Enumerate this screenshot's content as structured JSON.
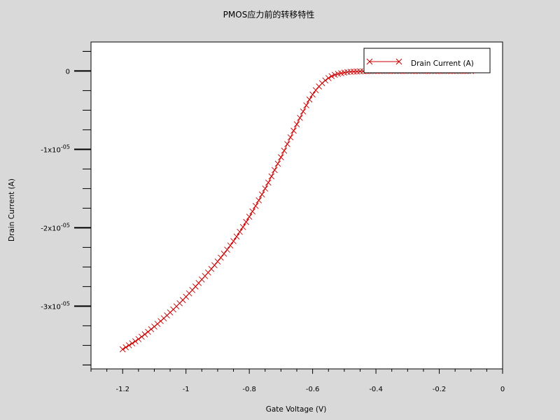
{
  "chart_data": {
    "type": "line",
    "title": "PMOS应力前的转移特性",
    "xlabel": "Gate Voltage (V)",
    "ylabel": "Drain Current (A)",
    "xlim": [
      -1.3,
      0.0
    ],
    "ylim": [
      -3.8e-05,
      3.7e-06
    ],
    "x_ticks": [
      -1.2,
      -1.0,
      -0.8,
      -0.6,
      -0.4,
      -0.2,
      0
    ],
    "x_tick_labels": [
      "-1.2",
      "-1",
      "-0.8",
      "-0.6",
      "-0.4",
      "-0.2",
      "0"
    ],
    "y_ticks": [
      0,
      -1e-05,
      -2e-05,
      -3e-05
    ],
    "y_tick_labels": [
      {
        "mantissa": "0",
        "exponent": ""
      },
      {
        "mantissa": "-1x10",
        "exponent": "-05"
      },
      {
        "mantissa": "-2x10",
        "exponent": "-05"
      },
      {
        "mantissa": "-3x10",
        "exponent": "-05"
      }
    ],
    "legend": {
      "position": "top-right"
    },
    "series": [
      {
        "name": "Drain Current (A)",
        "color": "#cc0000",
        "marker": "x",
        "x": [
          -1.2,
          -1.15,
          -1.1,
          -1.05,
          -1.0,
          -0.95,
          -0.9,
          -0.85,
          -0.8,
          -0.75,
          -0.7,
          -0.65,
          -0.6,
          -0.55,
          -0.5,
          -0.45,
          -0.4
        ],
        "y": [
          -3.55e-05,
          -3.42e-05,
          -3.26e-05,
          -3.08e-05,
          -2.88e-05,
          -2.66e-05,
          -2.43e-05,
          -2.17e-05,
          -1.86e-05,
          -1.5e-05,
          -1.1e-05,
          -6.8e-06,
          -3e-06,
          -9e-07,
          -2e-07,
          -5e-08,
          0
        ],
        "sample_step": 0.01
      }
    ]
  }
}
